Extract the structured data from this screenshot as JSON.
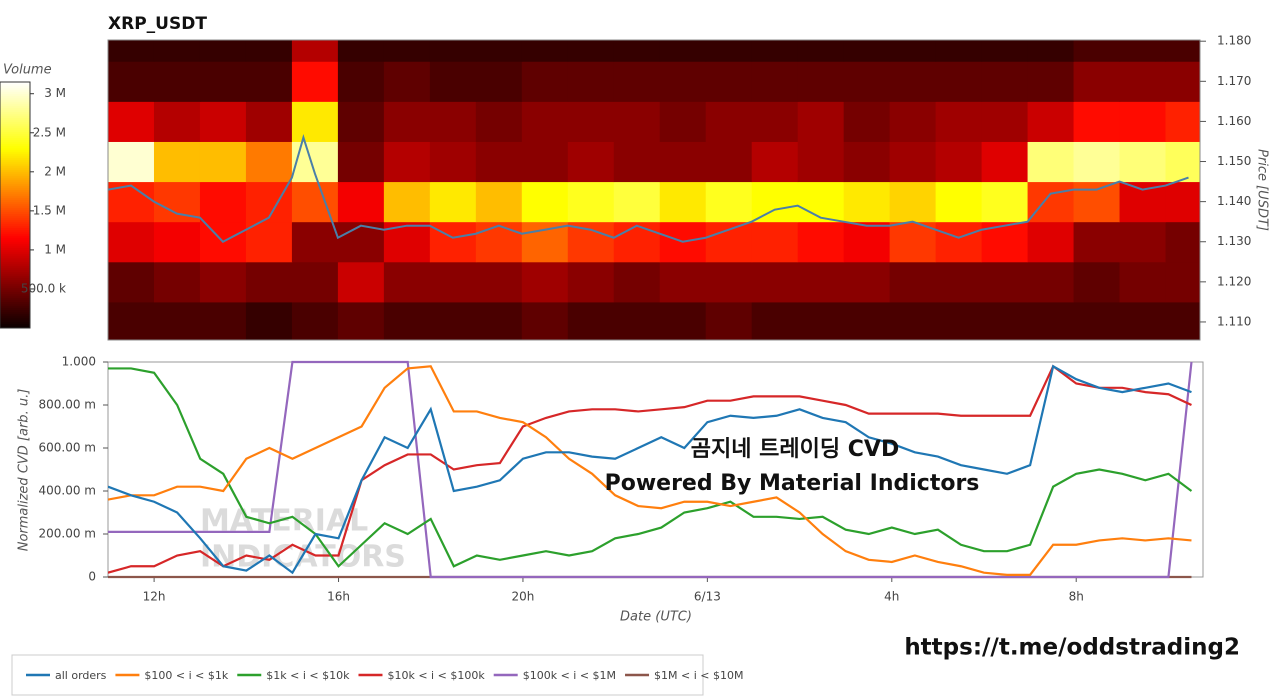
{
  "chart_data": [
    {
      "type": "heatmap",
      "title": "XRP_USDT",
      "ylabel": "Price [USDT]",
      "x_bins": [
        11,
        12,
        13,
        14,
        15,
        16,
        17,
        18,
        19,
        20,
        21,
        22,
        23,
        24,
        25,
        26,
        27,
        28,
        29,
        30,
        31,
        32,
        33,
        34,
        35
      ],
      "y_bins": [
        1.105,
        1.115,
        1.125,
        1.135,
        1.145,
        1.155,
        1.165,
        1.175,
        1.185
      ],
      "values": [
        [
          300000,
          300000,
          300000,
          200000,
          300000,
          400000,
          300000,
          300000,
          300000,
          400000,
          300000,
          300000,
          300000,
          400000,
          300000,
          300000,
          300000,
          300000,
          300000,
          300000,
          300000,
          300000,
          300000,
          300000
        ],
        [
          400000,
          500000,
          600000,
          500000,
          500000,
          900000,
          600000,
          600000,
          600000,
          700000,
          600000,
          500000,
          600000,
          600000,
          600000,
          600000,
          600000,
          500000,
          500000,
          500000,
          500000,
          400000,
          500000,
          500000
        ],
        [
          1000000,
          1100000,
          1200000,
          1300000,
          600000,
          600000,
          1000000,
          1300000,
          1400000,
          1600000,
          1400000,
          1300000,
          1200000,
          1300000,
          1300000,
          1200000,
          1100000,
          1400000,
          1300000,
          1200000,
          1000000,
          600000,
          600000,
          500000
        ],
        [
          1300000,
          1400000,
          1200000,
          1300000,
          1500000,
          1100000,
          2000000,
          2200000,
          2000000,
          2300000,
          2400000,
          2500000,
          2200000,
          2400000,
          2300000,
          2300000,
          2200000,
          2100000,
          2300000,
          2400000,
          1400000,
          1500000,
          1000000,
          1000000
        ],
        [
          3000000,
          2000000,
          2000000,
          1700000,
          2800000,
          500000,
          800000,
          700000,
          600000,
          600000,
          700000,
          600000,
          600000,
          600000,
          800000,
          700000,
          600000,
          700000,
          800000,
          1000000,
          2700000,
          2800000,
          2700000,
          2600000
        ],
        [
          1000000,
          800000,
          900000,
          700000,
          2200000,
          400000,
          600000,
          600000,
          500000,
          600000,
          600000,
          600000,
          500000,
          600000,
          600000,
          700000,
          500000,
          600000,
          700000,
          700000,
          900000,
          1200000,
          1200000,
          1300000
        ],
        [
          300000,
          300000,
          300000,
          300000,
          1200000,
          300000,
          400000,
          300000,
          300000,
          400000,
          400000,
          400000,
          400000,
          400000,
          400000,
          400000,
          400000,
          400000,
          400000,
          400000,
          400000,
          600000,
          600000,
          600000
        ],
        [
          200000,
          200000,
          200000,
          200000,
          800000,
          200000,
          200000,
          200000,
          200000,
          200000,
          200000,
          200000,
          200000,
          200000,
          200000,
          200000,
          200000,
          200000,
          200000,
          200000,
          200000,
          300000,
          300000,
          300000
        ]
      ],
      "xlim": [
        11,
        34.75
      ],
      "ylim": [
        1.1055,
        1.1803
      ],
      "yticks": [
        {
          "value": 1.11,
          "label": "1.110"
        },
        {
          "value": 1.12,
          "label": "1.120"
        },
        {
          "value": 1.13,
          "label": "1.130"
        },
        {
          "value": 1.14,
          "label": "1.140"
        },
        {
          "value": 1.15,
          "label": "1.150"
        },
        {
          "value": 1.16,
          "label": "1.160"
        },
        {
          "value": 1.17,
          "label": "1.170"
        },
        {
          "value": 1.18,
          "label": "1.180"
        }
      ],
      "colorbar": {
        "label": "Volume",
        "lim": [
          0,
          3150000
        ],
        "ticks": [
          {
            "value": 500000,
            "label": "500.0 k"
          },
          {
            "value": 1000000,
            "label": "1 M"
          },
          {
            "value": 1500000,
            "label": "1.5 M"
          },
          {
            "value": 2000000,
            "label": "2 M"
          },
          {
            "value": 2500000,
            "label": "2.5 M"
          },
          {
            "value": 3000000,
            "label": "3 M"
          }
        ]
      },
      "price": {
        "color": "#4a7fa8",
        "x": [
          11,
          11.5,
          12,
          12.5,
          13,
          13.5,
          14,
          14.5,
          15,
          15.25,
          15.5,
          16,
          16.5,
          17,
          17.5,
          18,
          18.5,
          19,
          19.5,
          20,
          20.5,
          21,
          21.5,
          22,
          22.5,
          23,
          23.5,
          24,
          24.5,
          25,
          25.5,
          26,
          26.5,
          27,
          27.5,
          28,
          28.5,
          29,
          29.5,
          30,
          30.5,
          31,
          31.5,
          32,
          32.5,
          33,
          33.5,
          34,
          34.5
        ],
        "values": [
          1.143,
          1.144,
          1.14,
          1.137,
          1.136,
          1.13,
          1.133,
          1.136,
          1.146,
          1.156,
          1.147,
          1.131,
          1.134,
          1.133,
          1.134,
          1.134,
          1.131,
          1.132,
          1.134,
          1.132,
          1.133,
          1.134,
          1.133,
          1.131,
          1.134,
          1.132,
          1.13,
          1.131,
          1.133,
          1.135,
          1.138,
          1.139,
          1.136,
          1.135,
          1.134,
          1.134,
          1.135,
          1.133,
          1.131,
          1.133,
          1.134,
          1.135,
          1.142,
          1.143,
          1.143,
          1.145,
          1.143,
          1.144,
          1.146
        ]
      }
    },
    {
      "type": "line",
      "xlabel": "Date (UTC)",
      "ylabel": "Normalized CVD [arb. u.]",
      "x": [
        11,
        11.5,
        12,
        12.5,
        13,
        13.5,
        14,
        14.5,
        15,
        15.5,
        16,
        16.5,
        17,
        17.5,
        18,
        18.5,
        19,
        19.5,
        20,
        20.5,
        21,
        21.5,
        22,
        22.5,
        23,
        23.5,
        24,
        24.5,
        25,
        25.5,
        26,
        26.5,
        27,
        27.5,
        28,
        28.5,
        29,
        29.5,
        30,
        30.5,
        31,
        31.5,
        32,
        32.5,
        33,
        33.5,
        34,
        34.5
      ],
      "xlim": [
        11,
        34.75
      ],
      "ylim": [
        0,
        1
      ],
      "xticks": [
        {
          "value": 12,
          "label": "12h"
        },
        {
          "value": 16,
          "label": "16h"
        },
        {
          "value": 20,
          "label": "20h"
        },
        {
          "value": 24,
          "label": "6/13"
        },
        {
          "value": 28,
          "label": "4h"
        },
        {
          "value": 32,
          "label": "8h"
        }
      ],
      "yticks": [
        0,
        {
          "value": 0.2,
          "label": "200.00 m"
        },
        {
          "value": 0.4,
          "label": "400.00 m"
        },
        {
          "value": 0.6,
          "label": "600.00 m"
        },
        {
          "value": 0.8,
          "label": "800.00 m"
        },
        {
          "value": 1,
          "label": "1.000"
        }
      ],
      "series": [
        {
          "name": "all orders",
          "color": "#1f77b4",
          "values": [
            0.42,
            0.38,
            0.35,
            0.3,
            0.18,
            0.05,
            0.03,
            0.1,
            0.02,
            0.2,
            0.18,
            0.45,
            0.65,
            0.6,
            0.78,
            0.4,
            0.42,
            0.45,
            0.55,
            0.58,
            0.58,
            0.56,
            0.55,
            0.6,
            0.65,
            0.6,
            0.72,
            0.75,
            0.74,
            0.75,
            0.78,
            0.74,
            0.72,
            0.65,
            0.62,
            0.58,
            0.56,
            0.52,
            0.5,
            0.48,
            0.52,
            0.98,
            0.92,
            0.88,
            0.86,
            0.88,
            0.9,
            0.86
          ]
        },
        {
          "name": "$100 < i < $1k",
          "color": "#ff7f0e",
          "values": [
            0.36,
            0.38,
            0.38,
            0.42,
            0.42,
            0.4,
            0.55,
            0.6,
            0.55,
            0.6,
            0.65,
            0.7,
            0.88,
            0.97,
            0.98,
            0.77,
            0.77,
            0.74,
            0.72,
            0.65,
            0.55,
            0.48,
            0.38,
            0.33,
            0.32,
            0.35,
            0.35,
            0.33,
            0.35,
            0.37,
            0.3,
            0.2,
            0.12,
            0.08,
            0.07,
            0.1,
            0.07,
            0.05,
            0.02,
            0.01,
            0.01,
            0.15,
            0.15,
            0.17,
            0.18,
            0.17,
            0.18,
            0.17
          ]
        },
        {
          "name": "$1k < i < $10k",
          "color": "#2ca02c",
          "values": [
            0.97,
            0.97,
            0.95,
            0.8,
            0.55,
            0.48,
            0.28,
            0.25,
            0.28,
            0.2,
            0.05,
            0.15,
            0.25,
            0.2,
            0.27,
            0.05,
            0.1,
            0.08,
            0.1,
            0.12,
            0.1,
            0.12,
            0.18,
            0.2,
            0.23,
            0.3,
            0.32,
            0.35,
            0.28,
            0.28,
            0.27,
            0.28,
            0.22,
            0.2,
            0.23,
            0.2,
            0.22,
            0.15,
            0.12,
            0.12,
            0.15,
            0.42,
            0.48,
            0.5,
            0.48,
            0.45,
            0.48,
            0.4
          ]
        },
        {
          "name": "$10k < i < $100k",
          "color": "#d62728",
          "values": [
            0.02,
            0.05,
            0.05,
            0.1,
            0.12,
            0.05,
            0.1,
            0.08,
            0.15,
            0.1,
            0.1,
            0.45,
            0.52,
            0.57,
            0.57,
            0.5,
            0.52,
            0.53,
            0.7,
            0.74,
            0.77,
            0.78,
            0.78,
            0.77,
            0.78,
            0.79,
            0.82,
            0.82,
            0.84,
            0.84,
            0.84,
            0.82,
            0.8,
            0.76,
            0.76,
            0.76,
            0.76,
            0.75,
            0.75,
            0.75,
            0.75,
            0.98,
            0.9,
            0.88,
            0.88,
            0.86,
            0.85,
            0.8
          ]
        },
        {
          "name": "$100k < i < $1M",
          "color": "#9467bd",
          "values": [
            0.21,
            0.21,
            0.21,
            0.21,
            0.21,
            0.21,
            0.21,
            0.21,
            1,
            1,
            1,
            1,
            1,
            1,
            0,
            0,
            0,
            0,
            0,
            0,
            0,
            0,
            0,
            0,
            0,
            0,
            0,
            0,
            0,
            0,
            0,
            0,
            0,
            0,
            0,
            0,
            0,
            0,
            0,
            0,
            0,
            0,
            0,
            0,
            0,
            0,
            0,
            1
          ]
        },
        {
          "name": "$1M < i < $10M",
          "color": "#8c564b",
          "values": [
            0,
            0,
            0,
            0,
            0,
            0,
            0,
            0,
            0,
            0,
            0,
            0,
            0,
            0,
            0,
            0,
            0,
            0,
            0,
            0,
            0,
            0,
            0,
            0,
            0,
            0,
            0,
            0,
            0,
            0,
            0,
            0,
            0,
            0,
            0,
            0,
            0,
            0,
            0,
            0,
            0,
            0,
            0,
            0,
            0,
            0,
            0,
            0
          ]
        }
      ],
      "annotations": [
        "곰지네 트레이딩 CVD",
        "Powered By Material Indictors"
      ],
      "watermark": [
        "MATERIAL",
        "INDICATORS"
      ]
    }
  ],
  "footer": "https://t.me/oddstrading2"
}
